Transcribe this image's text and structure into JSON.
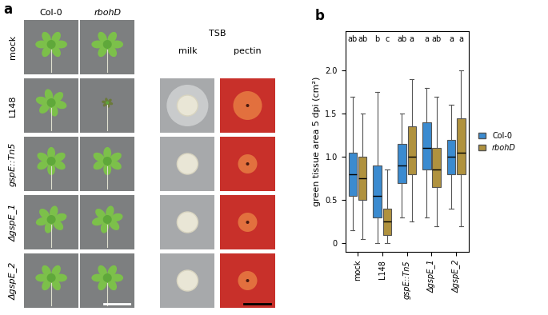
{
  "panel_a": {
    "label": "a",
    "columns": [
      "Col-0",
      "rbohD"
    ],
    "plate_header": "TSB",
    "plate_columns": [
      "milk",
      "pectin"
    ],
    "rows": [
      "mock",
      "L148",
      "gspE::Tn5",
      "ΔgspE_1",
      "ΔgspE_2"
    ]
  },
  "chart_data": {
    "type": "box",
    "panel_label": "b",
    "ylabel": "green tissue area 5 dpi (cm²)",
    "categories": [
      "mock",
      "L148",
      "gspE::Tn5",
      "ΔgspE_1",
      "ΔgspE_2"
    ],
    "ylim": [
      -0.1,
      2.45
    ],
    "yticks": [
      0,
      0.5,
      {
        "value": 1,
        "label": "1.0"
      },
      1.5,
      {
        "value": 2,
        "label": "2.0"
      }
    ],
    "legend": "right",
    "series": [
      {
        "name": "Col-0",
        "color": "#3b8bd0",
        "values": [
          {
            "low": 0.15,
            "q1": 0.55,
            "median": 0.8,
            "q3": 1.05,
            "high": 1.7
          },
          {
            "low": 0.0,
            "q1": 0.3,
            "median": 0.55,
            "q3": 0.9,
            "high": 1.75
          },
          {
            "low": 0.3,
            "q1": 0.7,
            "median": 0.9,
            "q3": 1.15,
            "high": 1.5
          },
          {
            "low": 0.3,
            "q1": 0.85,
            "median": 1.1,
            "q3": 1.4,
            "high": 1.8
          },
          {
            "low": 0.4,
            "q1": 0.8,
            "median": 1.0,
            "q3": 1.2,
            "high": 1.6
          }
        ],
        "letters": [
          "ab",
          "b",
          "ab",
          "a",
          "a"
        ]
      },
      {
        "name": "rbohD",
        "color": "#b0923e",
        "values": [
          {
            "low": 0.05,
            "q1": 0.5,
            "median": 0.75,
            "q3": 1.0,
            "high": 1.5
          },
          {
            "low": 0.0,
            "q1": 0.1,
            "median": 0.25,
            "q3": 0.4,
            "high": 0.85
          },
          {
            "low": 0.25,
            "q1": 0.8,
            "median": 1.0,
            "q3": 1.35,
            "high": 1.9
          },
          {
            "low": 0.2,
            "q1": 0.65,
            "median": 0.85,
            "q3": 1.1,
            "high": 1.7
          },
          {
            "low": 0.2,
            "q1": 0.8,
            "median": 1.05,
            "q3": 1.45,
            "high": 2.0
          }
        ],
        "letters": [
          "ab",
          "c",
          "a",
          "ab",
          "a"
        ]
      }
    ]
  }
}
